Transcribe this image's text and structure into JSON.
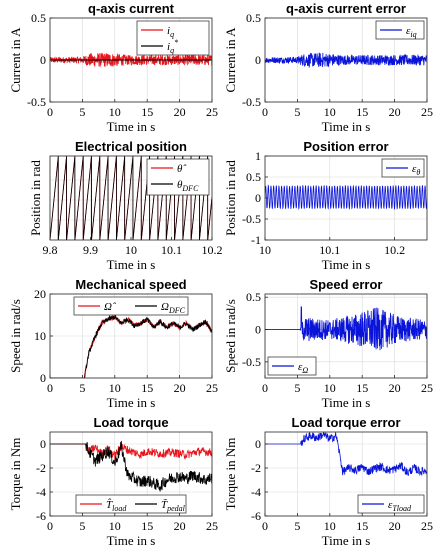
{
  "chart_data": [
    {
      "type": "line",
      "title": "q-axis current",
      "xlabel": "Time in s",
      "ylabel": "Current in A",
      "xlim": [
        0,
        25
      ],
      "ylim": [
        -0.5,
        0.5
      ],
      "xticks": [
        0,
        5,
        10,
        15,
        20,
        25
      ],
      "yticks": [
        -0.5,
        0,
        0.5
      ],
      "ytick_labels": [
        "-0.5",
        "0",
        "0.5"
      ],
      "grid": true,
      "legend_position": "top-right",
      "series": [
        {
          "name": "i_q",
          "color": "#e8141b",
          "kind": "noise",
          "base": 0,
          "env": [
            [
              0,
              0.035
            ],
            [
              5,
              0.04
            ],
            [
              6,
              0.08
            ],
            [
              9,
              0.09
            ],
            [
              12,
              0.06
            ],
            [
              25,
              0.065
            ]
          ]
        },
        {
          "name": "i_q*",
          "color": "#000000",
          "kind": "flat",
          "value": 0
        }
      ]
    },
    {
      "type": "line",
      "title": "q-axis current error",
      "xlabel": "Time in s",
      "ylabel": "Current in A",
      "xlim": [
        0,
        25
      ],
      "ylim": [
        -0.5,
        0.5
      ],
      "xticks": [
        0,
        5,
        10,
        15,
        20,
        25
      ],
      "yticks": [
        -0.5,
        0,
        0.5
      ],
      "ytick_labels": [
        "-0.5",
        "0",
        "0.5"
      ],
      "grid": true,
      "legend_position": "top-right",
      "series": [
        {
          "name": "ε_iq",
          "color": "#0a14d8",
          "kind": "noise",
          "base": 0,
          "env": [
            [
              0,
              0.035
            ],
            [
              5,
              0.04
            ],
            [
              6,
              0.08
            ],
            [
              9,
              0.09
            ],
            [
              12,
              0.06
            ],
            [
              25,
              0.065
            ]
          ]
        }
      ]
    },
    {
      "type": "line",
      "title": "Electrical position",
      "xlabel": "Time in s",
      "ylabel": "Position in rad",
      "xlim": [
        9.8,
        10.2
      ],
      "ylim": [
        0,
        6.3
      ],
      "xticks": [
        9.8,
        9.9,
        10,
        10.1,
        10.2
      ],
      "xtick_labels": [
        "9.8",
        "9.9",
        "10",
        "10.1",
        "10.2"
      ],
      "yticks": [],
      "grid": true,
      "legend_position": "top-right",
      "series": [
        {
          "name": "θ̂",
          "color": "#e8141b",
          "kind": "saw",
          "period": 0.0205
        },
        {
          "name": "θ_DFC",
          "color": "#000000",
          "kind": "saw",
          "period": 0.0205
        }
      ]
    },
    {
      "type": "line",
      "title": "Position error",
      "xlabel": "Time in s",
      "ylabel": "Position in rad",
      "xlim": [
        10,
        10.25
      ],
      "ylim": [
        -1,
        1
      ],
      "xticks": [
        10,
        10.1,
        10.2
      ],
      "xtick_labels": [
        "10",
        "10.1",
        "10.2"
      ],
      "yticks": [
        -1,
        -0.5,
        0,
        0.5,
        1
      ],
      "ytick_labels": [
        "-1",
        "-0.5",
        "0",
        "0.5",
        "1"
      ],
      "grid": true,
      "legend_position": "top-right",
      "series": [
        {
          "name": "ε_θ",
          "color": "#0a14d8",
          "kind": "osc",
          "base": 0.02,
          "amp": 0.28,
          "period": 0.0041
        }
      ]
    },
    {
      "type": "line",
      "title": "Mechanical speed",
      "xlabel": "Time in s",
      "ylabel": "Speed in rad/s",
      "xlim": [
        0,
        25
      ],
      "ylim": [
        0,
        20
      ],
      "xticks": [
        0,
        5,
        10,
        15,
        20,
        25
      ],
      "yticks": [
        0,
        10,
        20
      ],
      "ytick_labels": [
        "0",
        "10",
        "20"
      ],
      "grid": true,
      "legend_position": "top-center",
      "series": [
        {
          "name": "Ω̂",
          "color": "#e8141b",
          "kind": "path",
          "x": [
            0,
            5.3,
            6,
            7,
            8,
            9,
            10,
            11,
            12,
            13,
            14,
            15,
            16,
            17,
            18,
            19,
            20,
            21,
            22,
            23,
            24,
            25
          ],
          "y": [
            0,
            0,
            6,
            10,
            13,
            14,
            14.5,
            13,
            14,
            12.5,
            13,
            14,
            12,
            13.5,
            12,
            13,
            12,
            13,
            11.5,
            12.5,
            13.5,
            11
          ],
          "jitter": 0.6
        },
        {
          "name": "Ω_DFC",
          "color": "#000000",
          "kind": "path",
          "x": [
            0,
            5.3,
            6,
            7,
            8,
            9,
            10,
            11,
            12,
            13,
            14,
            15,
            16,
            17,
            18,
            19,
            20,
            21,
            22,
            23,
            24,
            25
          ],
          "y": [
            0,
            0,
            6,
            10,
            13,
            14,
            14.5,
            13,
            14,
            12.5,
            13,
            14,
            12,
            13.5,
            12,
            13,
            12,
            13,
            11.5,
            12.5,
            13.5,
            11
          ],
          "jitter": 0.6
        }
      ]
    },
    {
      "type": "line",
      "title": "Speed error",
      "xlabel": "Time in s",
      "ylabel": "Speed in rad/s",
      "xlim": [
        0,
        25
      ],
      "ylim": [
        -0.75,
        0.55
      ],
      "xticks": [
        0,
        5,
        10,
        15,
        20,
        25
      ],
      "yticks": [
        -0.5,
        0,
        0.5
      ],
      "ytick_labels": [
        "-0.5",
        "0",
        "0.5"
      ],
      "grid": true,
      "legend_position": "bottom-left",
      "series": [
        {
          "name": "ε_Ω",
          "color": "#0a14d8",
          "kind": "noise",
          "base": 0,
          "start": 5.4,
          "spike": [
            5.6,
            0.35
          ],
          "env": [
            [
              0,
              0
            ],
            [
              5.4,
              0
            ],
            [
              6,
              0.2
            ],
            [
              10,
              0.15
            ],
            [
              14,
              0.25
            ],
            [
              17,
              0.35
            ],
            [
              21,
              0.2
            ],
            [
              25,
              0.15
            ]
          ]
        }
      ]
    },
    {
      "type": "line",
      "title": "Load torque",
      "xlabel": "Time in s",
      "ylabel": "Torque in Nm",
      "xlim": [
        0,
        25
      ],
      "ylim": [
        -6,
        1
      ],
      "xticks": [
        0,
        5,
        10,
        15,
        20,
        25
      ],
      "yticks": [
        -6,
        -4,
        -2,
        0
      ],
      "ytick_labels": [
        "-6",
        "-4",
        "-2",
        "0"
      ],
      "grid": true,
      "legend_position": "bottom",
      "series": [
        {
          "name": "T̂_load",
          "color": "#e8141b",
          "kind": "path",
          "x": [
            0,
            5.5,
            6,
            7,
            8,
            9,
            10,
            11,
            12,
            13,
            14,
            15,
            17,
            19,
            21,
            23,
            25
          ],
          "y": [
            0,
            0,
            -0.6,
            -0.3,
            -0.8,
            -0.4,
            -1.0,
            -0.2,
            -0.5,
            -0.7,
            -0.9,
            -0.6,
            -0.8,
            -0.7,
            -0.9,
            -0.6,
            -0.7
          ],
          "jitter": 0.35
        },
        {
          "name": "T̃_pedal",
          "color": "#000000",
          "kind": "path",
          "x": [
            0,
            5.5,
            6,
            7,
            8,
            9,
            10,
            11,
            12,
            13,
            14,
            15,
            16,
            17,
            18,
            19,
            20,
            21,
            22,
            23,
            24,
            25
          ],
          "y": [
            0,
            0,
            -0.6,
            -1.4,
            -1.0,
            -0.6,
            -1.6,
            -0.2,
            -2.6,
            -2.9,
            -3.2,
            -3.0,
            -3.3,
            -3.5,
            -3.0,
            -2.8,
            -2.7,
            -2.9,
            -2.6,
            -2.8,
            -3.0,
            -2.8
          ],
          "jitter": 0.5
        }
      ]
    },
    {
      "type": "line",
      "title": "Load torque error",
      "xlabel": "Time in s",
      "ylabel": "Torque in Nm",
      "xlim": [
        0,
        25
      ],
      "ylim": [
        -6,
        1
      ],
      "xticks": [
        0,
        5,
        10,
        15,
        20,
        25
      ],
      "yticks": [
        -6,
        -4,
        -2,
        0
      ],
      "ytick_labels": [
        "-6",
        "-4",
        "-2",
        "0"
      ],
      "grid": true,
      "legend_position": "bottom-right",
      "series": [
        {
          "name": "ε_Tload",
          "color": "#0a14d8",
          "kind": "path",
          "x": [
            0,
            5.5,
            6,
            7,
            8,
            9,
            10,
            11,
            11.5,
            12,
            13,
            14,
            15,
            16,
            17,
            18,
            19,
            20,
            21,
            22,
            23,
            24,
            25
          ],
          "y": [
            0,
            0,
            0.4,
            0.7,
            0.5,
            0.8,
            0.4,
            0.7,
            -0.8,
            -2.3,
            -2.0,
            -2.2,
            -1.9,
            -2.3,
            -2.0,
            -1.9,
            -2.2,
            -2.1,
            -1.8,
            -2.4,
            -2.0,
            -2.3,
            -2.2
          ],
          "jitter": 0.35
        }
      ]
    }
  ]
}
